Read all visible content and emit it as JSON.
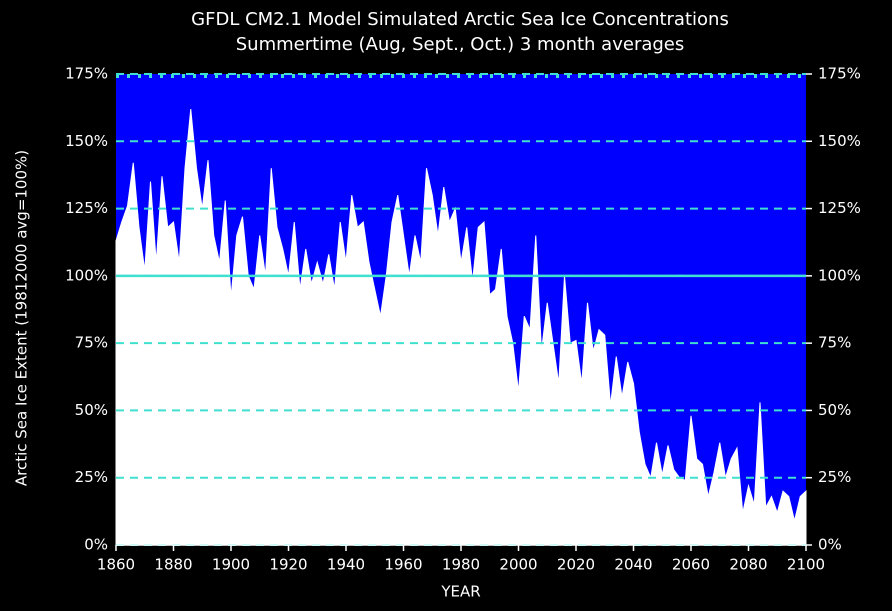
{
  "chart_data": {
    "type": "area",
    "title": "GFDL CM2.1 Model Simulated Arctic Sea Ice Concentrations",
    "subtitle": "Summertime (Aug, Sept., Oct.) 3 month averages",
    "x_label": "YEAR",
    "y_label": "Arctic Sea Ice Extent (19812000 avg=100%)",
    "x": [
      1860,
      1862,
      1864,
      1866,
      1868,
      1870,
      1872,
      1874,
      1876,
      1878,
      1880,
      1882,
      1884,
      1886,
      1888,
      1890,
      1892,
      1894,
      1896,
      1898,
      1900,
      1902,
      1904,
      1906,
      1908,
      1910,
      1912,
      1914,
      1916,
      1918,
      1920,
      1922,
      1924,
      1926,
      1928,
      1930,
      1932,
      1934,
      1936,
      1938,
      1940,
      1942,
      1944,
      1946,
      1948,
      1950,
      1952,
      1954,
      1956,
      1958,
      1960,
      1962,
      1964,
      1966,
      1968,
      1970,
      1972,
      1974,
      1976,
      1978,
      1980,
      1982,
      1984,
      1986,
      1988,
      1990,
      1992,
      1994,
      1996,
      1998,
      2000,
      2002,
      2004,
      2006,
      2008,
      2010,
      2012,
      2014,
      2016,
      2018,
      2020,
      2022,
      2024,
      2026,
      2028,
      2030,
      2032,
      2034,
      2036,
      2038,
      2040,
      2042,
      2044,
      2046,
      2048,
      2050,
      2052,
      2054,
      2056,
      2058,
      2060,
      2062,
      2064,
      2066,
      2068,
      2070,
      2072,
      2074,
      2076,
      2078,
      2080,
      2082,
      2084,
      2086,
      2088,
      2090,
      2092,
      2094,
      2096,
      2098,
      2100
    ],
    "values": [
      113,
      120,
      126,
      142,
      118,
      102,
      135,
      105,
      137,
      118,
      120,
      105,
      140,
      162,
      140,
      125,
      143,
      115,
      105,
      128,
      92,
      115,
      122,
      100,
      95,
      115,
      100,
      140,
      118,
      110,
      100,
      120,
      95,
      110,
      97,
      105,
      97,
      108,
      95,
      120,
      105,
      130,
      118,
      120,
      105,
      95,
      85,
      100,
      120,
      130,
      115,
      100,
      115,
      105,
      140,
      130,
      115,
      133,
      120,
      125,
      105,
      118,
      98,
      118,
      120,
      93,
      95,
      110,
      85,
      75,
      57,
      85,
      80,
      115,
      72,
      90,
      75,
      60,
      100,
      75,
      76,
      60,
      90,
      72,
      80,
      78,
      52,
      70,
      55,
      68,
      60,
      42,
      30,
      25,
      38,
      26,
      37,
      28,
      25,
      24,
      48,
      32,
      30,
      18,
      27,
      38,
      25,
      32,
      36,
      12,
      22,
      15,
      53,
      14,
      18,
      12,
      20,
      18,
      9,
      18,
      20
    ],
    "color": "#ffffff",
    "background_color": "#0000ff",
    "grid": true,
    "grid_color": "#40e0d0",
    "reference_line": {
      "value": 100,
      "color": "#40e0d0"
    },
    "xlim": [
      1860,
      2100
    ],
    "xticks": [
      1860,
      1880,
      1900,
      1920,
      1940,
      1960,
      1980,
      2000,
      2020,
      2040,
      2060,
      2080,
      2100
    ],
    "ylim": [
      0,
      175
    ],
    "yticks": [
      {
        "value": 0,
        "label": "0%"
      },
      {
        "value": 25,
        "label": "25%"
      },
      {
        "value": 50,
        "label": "50%"
      },
      {
        "value": 75,
        "label": "75%"
      },
      {
        "value": 100,
        "label": "100%"
      },
      {
        "value": 125,
        "label": "125%"
      },
      {
        "value": 150,
        "label": "150%"
      },
      {
        "value": 175,
        "label": "175%"
      }
    ],
    "y2lim": [
      0,
      175
    ],
    "y2ticks": [
      {
        "value": 0,
        "label": "0%"
      },
      {
        "value": 25,
        "label": "25%"
      },
      {
        "value": 50,
        "label": "50%"
      },
      {
        "value": 75,
        "label": "75%"
      },
      {
        "value": 100,
        "label": "100%"
      },
      {
        "value": 125,
        "label": "125%"
      },
      {
        "value": 150,
        "label": "150%"
      },
      {
        "value": 175,
        "label": "175%"
      }
    ]
  }
}
